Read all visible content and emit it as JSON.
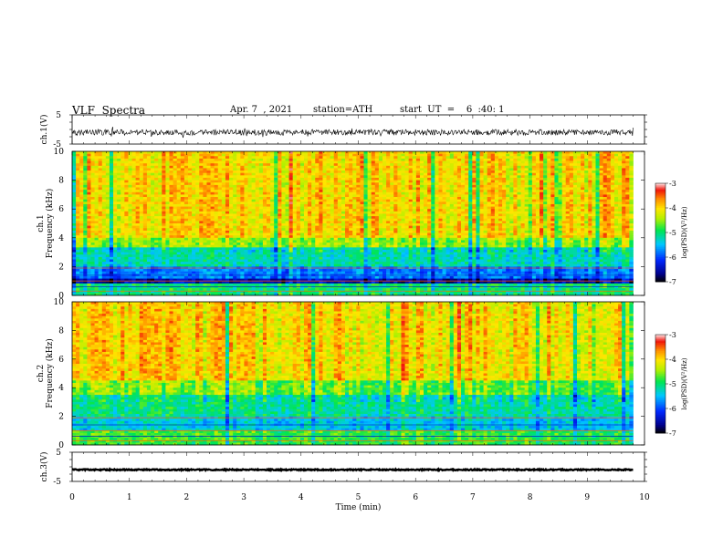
{
  "header": {
    "title": "VLF  Spectra",
    "date": "Apr. 7  , 2021",
    "station": "station=ATH",
    "start": "start  UT  =    6  :40: 1"
  },
  "chart_data": [
    {
      "type": "line",
      "panel": "ch1-waveform",
      "ylabel": "ch.1(V)",
      "ytick_labels": [
        "5",
        "-5"
      ],
      "ylim": [
        -5,
        5
      ],
      "xlim": [
        0,
        10
      ],
      "x_end": 9.8,
      "description_mode": "dense noisy trace around -1 V with ~±1 V fluctuations",
      "y_center": -1.0,
      "y_amplitude": 1.0
    },
    {
      "type": "heatmap",
      "panel": "ch1-spectrogram",
      "ylabel_top": "ch.1",
      "ylabel": "Frequency  (kHz)",
      "yticks": [
        0,
        2,
        4,
        6,
        8,
        10
      ],
      "ylim": [
        0,
        10
      ],
      "xlim": [
        0,
        10
      ],
      "x_end": 9.8,
      "colorbar": {
        "label": "log(PSD)(V²/Hz)",
        "range": [
          -7,
          -3
        ],
        "ticks": [
          "-3",
          "-4",
          "-5",
          "-6",
          "-7"
        ]
      },
      "bands": [
        {
          "from_khz": 4.0,
          "to_khz": 10.0,
          "log_psd": -4.0
        },
        {
          "from_khz": 3.3,
          "to_khz": 4.0,
          "log_psd": -4.5
        },
        {
          "from_khz": 2.0,
          "to_khz": 3.3,
          "log_psd": -5.2
        },
        {
          "from_khz": 1.2,
          "to_khz": 2.0,
          "log_psd": -5.8
        },
        {
          "from_khz": 0.8,
          "to_khz": 1.2,
          "log_psd": -6.5
        },
        {
          "from_khz": 0.0,
          "to_khz": 0.8,
          "log_psd": -5.0
        }
      ]
    },
    {
      "type": "heatmap",
      "panel": "ch2-spectrogram",
      "ylabel_top": "ch.2",
      "ylabel": "Frequency  (kHz)",
      "yticks": [
        0,
        2,
        4,
        6,
        8,
        10
      ],
      "ylim": [
        0,
        10
      ],
      "xlim": [
        0,
        10
      ],
      "x_end": 9.8,
      "colorbar": {
        "label": "log(PSD)(V²/Hz)",
        "range": [
          -7,
          -3
        ],
        "ticks": [
          "-3",
          "-4",
          "-5",
          "-6",
          "-7"
        ]
      },
      "bands": [
        {
          "from_khz": 4.5,
          "to_khz": 10.0,
          "log_psd": -4.0
        },
        {
          "from_khz": 3.5,
          "to_khz": 4.5,
          "log_psd": -4.6
        },
        {
          "from_khz": 2.0,
          "to_khz": 3.5,
          "log_psd": -5.1
        },
        {
          "from_khz": 1.0,
          "to_khz": 2.0,
          "log_psd": -5.4
        },
        {
          "from_khz": 0.0,
          "to_khz": 1.0,
          "log_psd": -4.8
        }
      ]
    },
    {
      "type": "line",
      "panel": "ch3-waveform",
      "ylabel": "ch.3(V)",
      "ytick_labels": [
        "5",
        "-5"
      ],
      "ylim": [
        -5,
        5
      ],
      "xlim": [
        0,
        10
      ],
      "x_end": 9.8,
      "y_center": -1.0,
      "y_amplitude": 0.2,
      "xlabel": "Time  (min)",
      "xticks": [
        0,
        1,
        2,
        3,
        4,
        5,
        6,
        7,
        8,
        9,
        10
      ]
    }
  ]
}
